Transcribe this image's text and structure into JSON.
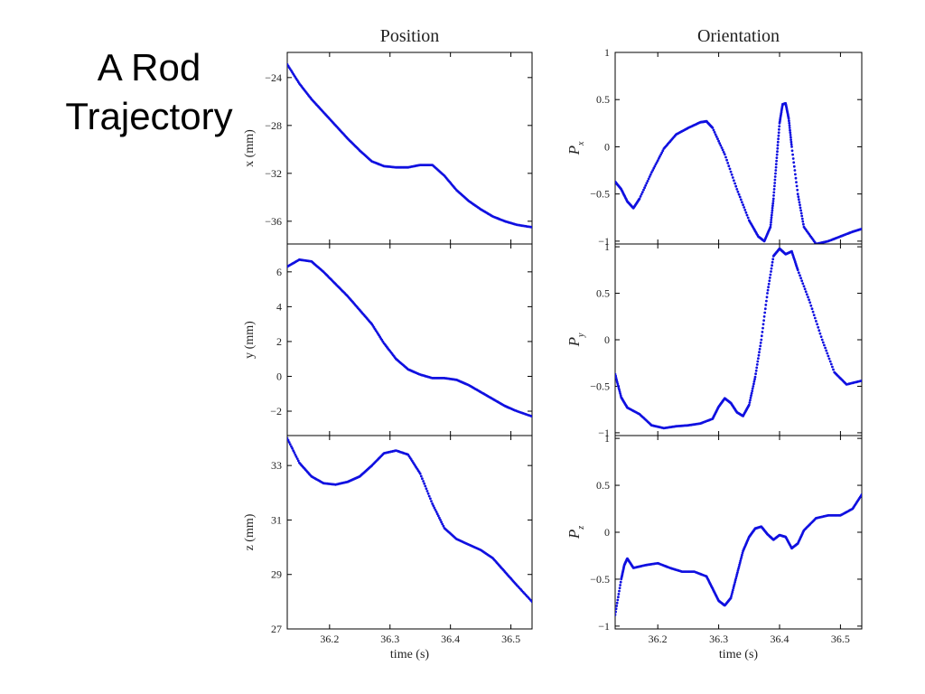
{
  "slide": {
    "title_line1": "A Rod",
    "title_line2": "Trajectory"
  },
  "style": {
    "series_color": "#1010e0",
    "axis_color": "#000000"
  },
  "chart_data": [
    {
      "type": "scatter",
      "title": "Position",
      "ylabel": "x (mm)",
      "xlim": [
        36.13,
        36.535
      ],
      "ylim": [
        -37.9,
        -21.9
      ],
      "yticks": [
        -24,
        -28,
        -32,
        -36
      ],
      "ytick_labels": [
        "−24",
        "−28",
        "−32",
        "−36"
      ],
      "xtick_labels_shown": false,
      "grid": false,
      "series": [
        {
          "name": "",
          "x": [
            36.13,
            36.15,
            36.17,
            36.19,
            36.21,
            36.23,
            36.25,
            36.27,
            36.29,
            36.31,
            36.33,
            36.35,
            36.37,
            36.39,
            36.41,
            36.43,
            36.45,
            36.47,
            36.49,
            36.51,
            36.535
          ],
          "y": [
            -22.9,
            -24.5,
            -25.8,
            -26.9,
            -28.0,
            -29.1,
            -30.1,
            -31.0,
            -31.4,
            -31.5,
            -31.5,
            -31.3,
            -31.3,
            -32.2,
            -33.4,
            -34.3,
            -35.0,
            -35.6,
            -36.0,
            -36.3,
            -36.5
          ]
        }
      ]
    },
    {
      "type": "scatter",
      "ylabel": "y (mm)",
      "xlim": [
        36.13,
        36.535
      ],
      "ylim": [
        -3.4,
        7.6
      ],
      "yticks": [
        6,
        4,
        2,
        0,
        -2
      ],
      "ytick_labels": [
        "6",
        "4",
        "2",
        "0",
        "−2"
      ],
      "xtick_labels_shown": false,
      "grid": false,
      "series": [
        {
          "name": "",
          "x": [
            36.13,
            36.15,
            36.17,
            36.19,
            36.21,
            36.23,
            36.25,
            36.27,
            36.29,
            36.31,
            36.33,
            36.35,
            36.37,
            36.39,
            36.41,
            36.43,
            36.45,
            36.47,
            36.49,
            36.51,
            36.535
          ],
          "y": [
            6.3,
            6.7,
            6.6,
            6.0,
            5.3,
            4.6,
            3.8,
            3.0,
            1.9,
            1.0,
            0.4,
            0.1,
            -0.1,
            -0.1,
            -0.2,
            -0.5,
            -0.9,
            -1.3,
            -1.7,
            -2.0,
            -2.3
          ]
        }
      ]
    },
    {
      "type": "scatter",
      "xlabel": "time (s)",
      "ylabel": "z (mm)",
      "xlim": [
        36.13,
        36.535
      ],
      "ylim": [
        27,
        34.1
      ],
      "xticks": [
        36.2,
        36.3,
        36.4,
        36.5
      ],
      "xtick_labels": [
        "36.2",
        "36.3",
        "36.4",
        "36.5"
      ],
      "yticks": [
        33,
        31,
        29,
        27
      ],
      "ytick_labels": [
        "33",
        "31",
        "29",
        "27"
      ],
      "grid": false,
      "series": [
        {
          "name": "",
          "x": [
            36.13,
            36.15,
            36.17,
            36.19,
            36.21,
            36.23,
            36.25,
            36.27,
            36.29,
            36.31,
            36.33,
            36.35,
            36.37,
            36.39,
            36.41,
            36.43,
            36.45,
            36.47,
            36.49,
            36.51,
            36.535
          ],
          "y": [
            34.0,
            33.1,
            32.6,
            32.35,
            32.3,
            32.4,
            32.6,
            33.0,
            33.45,
            33.55,
            33.4,
            32.7,
            31.6,
            30.7,
            30.3,
            30.1,
            29.9,
            29.6,
            29.1,
            28.6,
            28.0
          ]
        }
      ]
    },
    {
      "type": "scatter",
      "title": "Orientation",
      "ylabel": "P_x",
      "ylabel_main": "P",
      "ylabel_sub": "x",
      "xlim": [
        36.13,
        36.535
      ],
      "ylim": [
        -1.03,
        1.0
      ],
      "yticks": [
        1,
        0.5,
        0,
        -0.5,
        -1
      ],
      "ytick_labels": [
        "1",
        "0.5",
        "0",
        "−0.5",
        "−1"
      ],
      "xtick_labels_shown": false,
      "grid": false,
      "series": [
        {
          "name": "",
          "x": [
            36.13,
            36.14,
            36.15,
            36.16,
            36.17,
            36.19,
            36.21,
            36.23,
            36.25,
            36.27,
            36.28,
            36.29,
            36.31,
            36.33,
            36.35,
            36.365,
            36.375,
            36.385,
            36.39,
            36.395,
            36.4,
            36.405,
            36.41,
            36.415,
            36.42,
            36.43,
            36.44,
            36.46,
            36.48,
            36.5,
            36.52,
            36.535
          ],
          "y": [
            -0.37,
            -0.45,
            -0.58,
            -0.65,
            -0.55,
            -0.27,
            -0.02,
            0.13,
            0.2,
            0.26,
            0.27,
            0.2,
            -0.08,
            -0.45,
            -0.78,
            -0.95,
            -1.0,
            -0.85,
            -0.55,
            -0.15,
            0.25,
            0.45,
            0.46,
            0.3,
            0.0,
            -0.5,
            -0.85,
            -1.03,
            -1.0,
            -0.95,
            -0.9,
            -0.87
          ]
        }
      ]
    },
    {
      "type": "scatter",
      "ylabel": "P_y",
      "ylabel_main": "P",
      "ylabel_sub": "y",
      "xlim": [
        36.13,
        36.535
      ],
      "ylim": [
        -1.03,
        1.03
      ],
      "yticks": [
        1,
        0.5,
        0,
        -0.5,
        -1
      ],
      "ytick_labels": [
        "1",
        "0.5",
        "0",
        "−0.5",
        "−1"
      ],
      "xtick_labels_shown": false,
      "grid": false,
      "series": [
        {
          "name": "",
          "x": [
            36.13,
            36.14,
            36.15,
            36.17,
            36.19,
            36.21,
            36.23,
            36.25,
            36.27,
            36.29,
            36.3,
            36.31,
            36.32,
            36.33,
            36.34,
            36.35,
            36.36,
            36.37,
            36.38,
            36.39,
            36.4,
            36.41,
            36.42,
            36.43,
            36.45,
            36.47,
            36.49,
            36.51,
            36.535
          ],
          "y": [
            -0.37,
            -0.62,
            -0.73,
            -0.8,
            -0.92,
            -0.95,
            -0.93,
            -0.92,
            -0.9,
            -0.85,
            -0.72,
            -0.63,
            -0.68,
            -0.78,
            -0.82,
            -0.7,
            -0.4,
            0.0,
            0.5,
            0.9,
            0.98,
            0.92,
            0.95,
            0.75,
            0.4,
            0.0,
            -0.35,
            -0.48,
            -0.44
          ]
        }
      ]
    },
    {
      "type": "scatter",
      "xlabel": "time (s)",
      "ylabel": "P_z",
      "ylabel_main": "P",
      "ylabel_sub": "z",
      "xlim": [
        36.13,
        36.535
      ],
      "ylim": [
        -1.03,
        1.03
      ],
      "xticks": [
        36.2,
        36.3,
        36.4,
        36.5
      ],
      "xtick_labels": [
        "36.2",
        "36.3",
        "36.4",
        "36.5"
      ],
      "yticks": [
        1,
        0.5,
        0,
        -0.5,
        -1
      ],
      "ytick_labels": [
        "1",
        "0.5",
        "0",
        "−0.5",
        "−1"
      ],
      "grid": false,
      "series": [
        {
          "name": "",
          "x": [
            36.13,
            36.14,
            36.145,
            36.15,
            36.16,
            36.18,
            36.2,
            36.22,
            36.24,
            36.26,
            36.28,
            36.29,
            36.3,
            36.31,
            36.32,
            36.33,
            36.34,
            36.35,
            36.36,
            36.37,
            36.38,
            36.39,
            36.4,
            36.41,
            36.42,
            36.43,
            36.44,
            36.46,
            36.48,
            36.5,
            36.52,
            36.535
          ],
          "y": [
            -0.88,
            -0.5,
            -0.35,
            -0.28,
            -0.38,
            -0.35,
            -0.33,
            -0.38,
            -0.42,
            -0.42,
            -0.47,
            -0.6,
            -0.73,
            -0.78,
            -0.7,
            -0.45,
            -0.2,
            -0.05,
            0.04,
            0.06,
            -0.02,
            -0.08,
            -0.03,
            -0.05,
            -0.17,
            -0.12,
            0.02,
            0.15,
            0.18,
            0.18,
            0.25,
            0.4
          ]
        }
      ]
    }
  ]
}
